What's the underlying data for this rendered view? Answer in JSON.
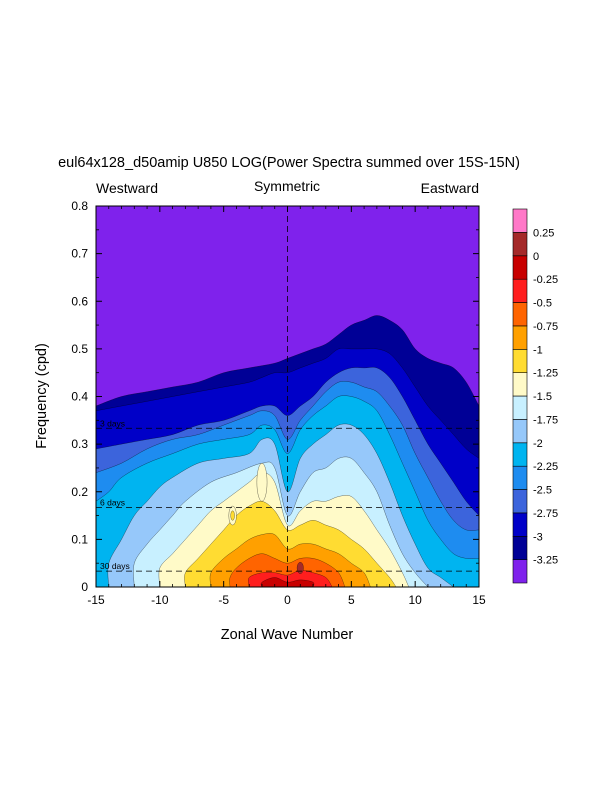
{
  "chart_data": {
    "type": "heatmap",
    "title": "eul64x128_d50amip U850 LOG(Power Spectra summed over 15S-15N)",
    "left_subtitle": "Westward",
    "center_subtitle": "Symmetric",
    "right_subtitle": "Eastward",
    "xlabel": "Zonal Wave Number",
    "ylabel": "Frequency (cpd)",
    "xlim": [
      -15,
      15
    ],
    "ylim": [
      0,
      0.8
    ],
    "x_ticks": [
      -15,
      -10,
      -5,
      0,
      5,
      10,
      15
    ],
    "y_ticks": [
      0,
      0.1,
      0.2,
      0.3,
      0.4,
      0.5,
      0.6,
      0.7,
      0.8
    ],
    "x_tick_labels": [
      "-15",
      "-10",
      "-5",
      "0",
      "5",
      "10",
      "15"
    ],
    "y_tick_labels": [
      "0",
      "0.1",
      "0.2",
      "0.3",
      "0.4",
      "0.5",
      "0.6",
      "0.7",
      "0.8"
    ],
    "reference_lines": [
      {
        "label": "3 days",
        "frequency": 0.3333
      },
      {
        "label": "6 days",
        "frequency": 0.1667
      },
      {
        "label": "30 days",
        "frequency": 0.0333
      }
    ],
    "contour_levels": [
      -3.25,
      -3,
      -2.75,
      -2.5,
      -2.25,
      -2,
      -1.75,
      -1.5,
      -1.25,
      -1,
      -0.75,
      -0.5,
      -0.25,
      0,
      0.25
    ],
    "colorbar": {
      "labels": [
        "0.25",
        "0",
        "-0.25",
        "-0.5",
        "-0.75",
        "-1",
        "-1.25",
        "-1.5",
        "-1.75",
        "-2",
        "-2.25",
        "-2.5",
        "-2.75",
        "-3",
        "-3.25"
      ],
      "colors": [
        "#7f22ec",
        "#000096",
        "#0000c8",
        "#3c64dc",
        "#1e8cf0",
        "#00b4f0",
        "#96c8fa",
        "#c8f0ff",
        "#fffac8",
        "#ffdc32",
        "#ffa000",
        "#ff6400",
        "#ff1e1e",
        "#c80000",
        "#a52a2a",
        "#ff78c8"
      ]
    },
    "contours": [
      {
        "level": -3.25,
        "points": [
          [
            -15,
            0.38
          ],
          [
            -13,
            0.4
          ],
          [
            -11,
            0.41
          ],
          [
            -9,
            0.42
          ],
          [
            -7,
            0.43
          ],
          [
            -5,
            0.45
          ],
          [
            -3,
            0.46
          ],
          [
            -1,
            0.47
          ],
          [
            0,
            0.48
          ],
          [
            1,
            0.49
          ],
          [
            2,
            0.5
          ],
          [
            3,
            0.51
          ],
          [
            4,
            0.53
          ],
          [
            5,
            0.55
          ],
          [
            6,
            0.56
          ],
          [
            7,
            0.57
          ],
          [
            8,
            0.56
          ],
          [
            9,
            0.54
          ],
          [
            10,
            0.5
          ],
          [
            11,
            0.48
          ],
          [
            12,
            0.47
          ],
          [
            13,
            0.46
          ],
          [
            14,
            0.43
          ],
          [
            15,
            0.38
          ]
        ]
      },
      {
        "level": -3,
        "points": [
          [
            -15,
            0.37
          ],
          [
            -13,
            0.38
          ],
          [
            -11,
            0.39
          ],
          [
            -9,
            0.4
          ],
          [
            -7,
            0.41
          ],
          [
            -5,
            0.42
          ],
          [
            -3,
            0.43
          ],
          [
            -2,
            0.44
          ],
          [
            -1,
            0.45
          ],
          [
            0,
            0.45
          ],
          [
            1,
            0.46
          ],
          [
            2,
            0.47
          ],
          [
            3,
            0.48
          ],
          [
            4,
            0.5
          ],
          [
            5,
            0.5
          ],
          [
            6,
            0.5
          ],
          [
            7,
            0.5
          ],
          [
            8,
            0.49
          ],
          [
            9,
            0.46
          ],
          [
            10,
            0.42
          ],
          [
            11,
            0.38
          ],
          [
            12,
            0.35
          ],
          [
            13,
            0.32
          ],
          [
            14,
            0.29
          ],
          [
            15,
            0.27
          ]
        ]
      },
      {
        "level": -2.75,
        "points": [
          [
            -15,
            0.29
          ],
          [
            -13,
            0.3
          ],
          [
            -11,
            0.31
          ],
          [
            -9,
            0.32
          ],
          [
            -7,
            0.34
          ],
          [
            -5,
            0.35
          ],
          [
            -3,
            0.37
          ],
          [
            -2,
            0.38
          ],
          [
            -1,
            0.38
          ],
          [
            0,
            0.36
          ],
          [
            1,
            0.38
          ],
          [
            2,
            0.4
          ],
          [
            3,
            0.43
          ],
          [
            4,
            0.45
          ],
          [
            5,
            0.46
          ],
          [
            6,
            0.46
          ],
          [
            7,
            0.46
          ],
          [
            8,
            0.44
          ],
          [
            9,
            0.4
          ],
          [
            10,
            0.35
          ],
          [
            11,
            0.3
          ],
          [
            12,
            0.26
          ],
          [
            13,
            0.22
          ],
          [
            14,
            0.18
          ],
          [
            15,
            0.15
          ]
        ]
      },
      {
        "level": -2.5,
        "points": [
          [
            -15,
            0.24
          ],
          [
            -13,
            0.26
          ],
          [
            -11,
            0.29
          ],
          [
            -9,
            0.31
          ],
          [
            -7,
            0.32
          ],
          [
            -5,
            0.34
          ],
          [
            -3,
            0.36
          ],
          [
            -2,
            0.37
          ],
          [
            -1,
            0.36
          ],
          [
            0,
            0.31
          ],
          [
            1,
            0.35
          ],
          [
            2,
            0.38
          ],
          [
            3,
            0.41
          ],
          [
            4,
            0.43
          ],
          [
            5,
            0.43
          ],
          [
            6,
            0.42
          ],
          [
            7,
            0.41
          ],
          [
            8,
            0.38
          ],
          [
            9,
            0.34
          ],
          [
            10,
            0.28
          ],
          [
            11,
            0.23
          ],
          [
            12,
            0.18
          ],
          [
            13,
            0.14
          ],
          [
            14,
            0.12
          ],
          [
            15,
            0.12
          ]
        ]
      },
      {
        "level": -2.25,
        "points": [
          [
            -15,
            0.18
          ],
          [
            -14,
            0.2
          ],
          [
            -13,
            0.23
          ],
          [
            -11,
            0.26
          ],
          [
            -9,
            0.28
          ],
          [
            -7,
            0.3
          ],
          [
            -5,
            0.31
          ],
          [
            -3,
            0.32
          ],
          [
            -2,
            0.34
          ],
          [
            -1,
            0.33
          ],
          [
            0,
            0.28
          ],
          [
            1,
            0.33
          ],
          [
            2,
            0.36
          ],
          [
            3,
            0.38
          ],
          [
            4,
            0.4
          ],
          [
            5,
            0.4
          ],
          [
            6,
            0.39
          ],
          [
            7,
            0.37
          ],
          [
            8,
            0.32
          ],
          [
            9,
            0.26
          ],
          [
            10,
            0.2
          ],
          [
            11,
            0.14
          ],
          [
            12,
            0.1
          ],
          [
            13,
            0.07
          ],
          [
            14,
            0.06
          ],
          [
            15,
            0.06
          ]
        ]
      },
      {
        "level": -2,
        "points": [
          [
            -14,
            0.0
          ],
          [
            -14,
            0.05
          ],
          [
            -13,
            0.1
          ],
          [
            -12,
            0.15
          ],
          [
            -11,
            0.18
          ],
          [
            -10,
            0.21
          ],
          [
            -9,
            0.23
          ],
          [
            -7,
            0.26
          ],
          [
            -5,
            0.27
          ],
          [
            -3,
            0.28
          ],
          [
            -2,
            0.31
          ],
          [
            -1,
            0.3
          ],
          [
            0,
            0.2
          ],
          [
            1,
            0.27
          ],
          [
            2,
            0.3
          ],
          [
            3,
            0.32
          ],
          [
            4,
            0.34
          ],
          [
            5,
            0.34
          ],
          [
            6,
            0.32
          ],
          [
            7,
            0.28
          ],
          [
            8,
            0.22
          ],
          [
            9,
            0.15
          ],
          [
            10,
            0.09
          ],
          [
            11,
            0.04
          ],
          [
            12,
            0.02
          ],
          [
            13,
            0.0
          ]
        ]
      },
      {
        "level": -1.75,
        "points": [
          [
            -12,
            0.0
          ],
          [
            -12,
            0.05
          ],
          [
            -11,
            0.09
          ],
          [
            -10,
            0.12
          ],
          [
            -9,
            0.15
          ],
          [
            -8,
            0.18
          ],
          [
            -6,
            0.22
          ],
          [
            -4,
            0.24
          ],
          [
            -2,
            0.26
          ],
          [
            -1,
            0.25
          ],
          [
            0,
            0.15
          ],
          [
            1,
            0.2
          ],
          [
            2,
            0.24
          ],
          [
            3,
            0.25
          ],
          [
            4,
            0.27
          ],
          [
            5,
            0.27
          ],
          [
            6,
            0.24
          ],
          [
            7,
            0.2
          ],
          [
            8,
            0.13
          ],
          [
            9,
            0.07
          ],
          [
            10,
            0.03
          ],
          [
            11,
            0.0
          ]
        ]
      },
      {
        "level": -1.5,
        "points": [
          [
            -10,
            0.0
          ],
          [
            -10,
            0.04
          ],
          [
            -9,
            0.07
          ],
          [
            -8,
            0.1
          ],
          [
            -7,
            0.13
          ],
          [
            -6,
            0.16
          ],
          [
            -5,
            0.18
          ],
          [
            -4,
            0.2
          ],
          [
            -3,
            0.22
          ],
          [
            -2,
            0.24
          ],
          [
            -1,
            0.22
          ],
          [
            0,
            0.13
          ],
          [
            1,
            0.16
          ],
          [
            2,
            0.18
          ],
          [
            3,
            0.18
          ],
          [
            4,
            0.19
          ],
          [
            5,
            0.19
          ],
          [
            6,
            0.16
          ],
          [
            7,
            0.12
          ],
          [
            8,
            0.08
          ],
          [
            9,
            0.03
          ],
          [
            9.5,
            0.0
          ]
        ]
      },
      {
        "level": -1.25,
        "points": [
          [
            -8,
            0.0
          ],
          [
            -8,
            0.03
          ],
          [
            -7,
            0.06
          ],
          [
            -6,
            0.09
          ],
          [
            -5,
            0.12
          ],
          [
            -4,
            0.15
          ],
          [
            -3,
            0.17
          ],
          [
            -2,
            0.18
          ],
          [
            -1,
            0.16
          ],
          [
            0,
            0.12
          ],
          [
            1,
            0.13
          ],
          [
            2,
            0.14
          ],
          [
            3,
            0.13
          ],
          [
            4,
            0.12
          ],
          [
            5,
            0.1
          ],
          [
            6,
            0.08
          ],
          [
            7,
            0.05
          ],
          [
            8,
            0.02
          ],
          [
            8.5,
            0.0
          ]
        ]
      },
      {
        "level": -1,
        "points": [
          [
            -6,
            0.0
          ],
          [
            -6,
            0.03
          ],
          [
            -5,
            0.06
          ],
          [
            -4,
            0.08
          ],
          [
            -3,
            0.1
          ],
          [
            -2,
            0.11
          ],
          [
            -1,
            0.11
          ],
          [
            0,
            0.08
          ],
          [
            1,
            0.09
          ],
          [
            2,
            0.09
          ],
          [
            3,
            0.08
          ],
          [
            4,
            0.07
          ],
          [
            5,
            0.05
          ],
          [
            6,
            0.03
          ],
          [
            6.5,
            0.0
          ]
        ]
      },
      {
        "level": -0.75,
        "points": [
          [
            -4.5,
            0.0
          ],
          [
            -4.5,
            0.02
          ],
          [
            -4,
            0.04
          ],
          [
            -3,
            0.06
          ],
          [
            -2,
            0.07
          ],
          [
            -1,
            0.06
          ],
          [
            0,
            0.05
          ],
          [
            1,
            0.06
          ],
          [
            2,
            0.06
          ],
          [
            3,
            0.05
          ],
          [
            4,
            0.03
          ],
          [
            4.5,
            0.0
          ]
        ]
      },
      {
        "level": -0.5,
        "points": [
          [
            -3,
            0.0
          ],
          [
            -3,
            0.02
          ],
          [
            -2,
            0.03
          ],
          [
            -1,
            0.03
          ],
          [
            0,
            0.025
          ],
          [
            1,
            0.035
          ],
          [
            2,
            0.03
          ],
          [
            3,
            0.02
          ],
          [
            3.5,
            0.0
          ]
        ]
      },
      {
        "level": -0.25,
        "points": [
          [
            -2,
            0.0
          ],
          [
            -2,
            0.01
          ],
          [
            -1,
            0.02
          ],
          [
            0,
            0.01
          ],
          [
            1,
            0.015
          ],
          [
            2,
            0.01
          ],
          [
            2,
            0.0
          ]
        ]
      }
    ],
    "patches": [
      {
        "level": -1.5,
        "center": [
          -2,
          0.22
        ],
        "rx": 0.4,
        "ry": 0.04
      },
      {
        "level": -1.5,
        "center": [
          -4.3,
          0.15
        ],
        "rx": 0.3,
        "ry": 0.02
      },
      {
        "level": -1.25,
        "center": [
          -4.3,
          0.15
        ],
        "rx": 0.15,
        "ry": 0.01
      },
      {
        "level": 0,
        "center": [
          1,
          0.04
        ],
        "rx": 0.25,
        "ry": 0.012
      }
    ]
  }
}
